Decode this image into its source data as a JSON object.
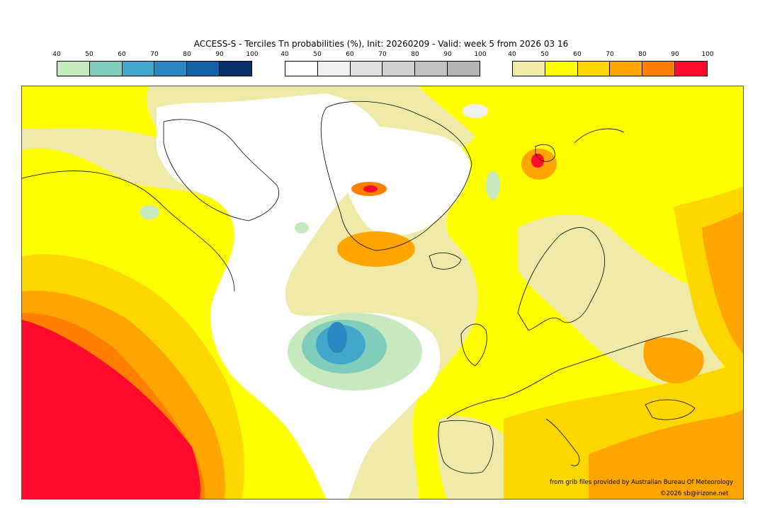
{
  "title": "ACCESS-S - Terciles Tn probabilities (%), Init: 20260209 - Valid: week 5 from 2026 03 16",
  "legends": [
    {
      "id": "below",
      "ticks": [
        "40",
        "50",
        "60",
        "70",
        "80",
        "90",
        "100"
      ],
      "colors": [
        "#c7e9c0",
        "#7fcdbb",
        "#41a6c9",
        "#2b87bf",
        "#1461a8",
        "#08306b"
      ]
    },
    {
      "id": "normal",
      "ticks": [
        "40",
        "50",
        "60",
        "70",
        "80",
        "90",
        "100"
      ],
      "colors": [
        "#ffffff",
        "#f0f0f0",
        "#e0e0e0",
        "#d0d0d0",
        "#c2c2c2",
        "#b2b2b2"
      ]
    },
    {
      "id": "above",
      "ticks": [
        "40",
        "50",
        "60",
        "70",
        "80",
        "90",
        "100"
      ],
      "colors": [
        "#f0eaa8",
        "#ffff00",
        "#ffd700",
        "#ffa500",
        "#ff7f00",
        "#ff0a2a"
      ]
    }
  ],
  "credits": {
    "source": "from grib files provided by Australian Bureau Of Meteorology",
    "copyright": "©2026 sb@irizone.net"
  }
}
